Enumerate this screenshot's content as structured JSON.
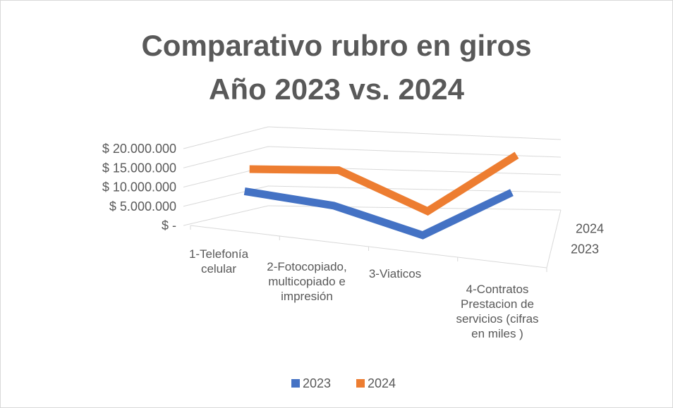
{
  "chart_data": {
    "type": "line3d",
    "title": "Comparativo rubro en giros",
    "subtitle": "Año 2023 vs. 2024",
    "categories": [
      "1-Telefonía celular",
      "2-Fotocopiado, multicopiado e impresión",
      "3-Viaticos",
      "4-Contratos Prestacion de servicios (cifras en miles )"
    ],
    "series": [
      {
        "name": "2023",
        "color": "#4472c4",
        "values": [
          6000000,
          5000000,
          0,
          14000000
        ]
      },
      {
        "name": "2024",
        "color": "#ed7d31",
        "values": [
          6500000,
          9000000,
          1000000,
          18500000
        ]
      }
    ],
    "ylim": [
      0,
      20000000
    ],
    "yticks": [
      {
        "value": 0,
        "label": "$ -"
      },
      {
        "value": 5000000,
        "label": "$ 5.000.000"
      },
      {
        "value": 10000000,
        "label": "$ 10.000.000"
      },
      {
        "value": 15000000,
        "label": "$ 15.000.000"
      },
      {
        "value": 20000000,
        "label": "$ 20.000.000"
      }
    ],
    "grid": true
  }
}
